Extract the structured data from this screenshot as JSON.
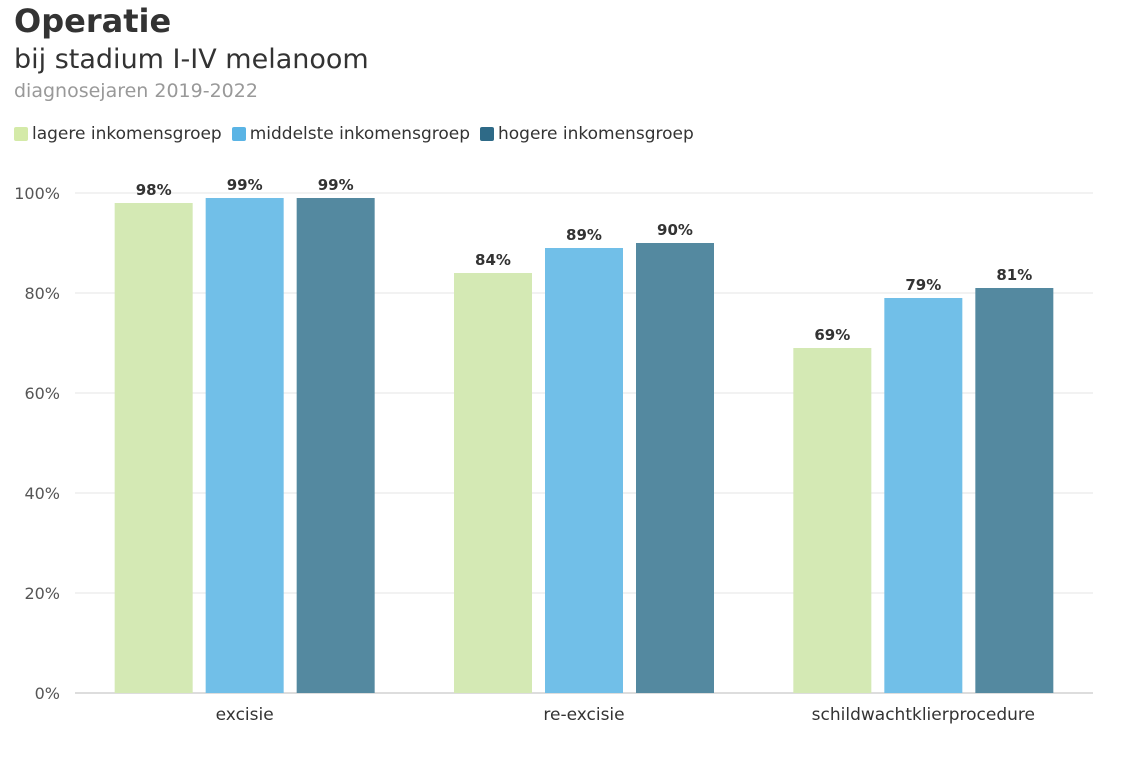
{
  "chart_data": {
    "type": "bar",
    "title": "Operatie",
    "subtitle": "bij stadium I-IV melanoom",
    "caption": "diagnosejaren 2019-2022",
    "categories": [
      "excisie",
      "re-excisie",
      "schildwachtklierprocedure"
    ],
    "series": [
      {
        "name": "lagere inkomensgroep",
        "values": [
          98,
          84,
          69
        ],
        "labels": [
          "98%",
          "84%",
          "69%"
        ],
        "color": "#d4e9b4",
        "legend_color": "#d4eaa8"
      },
      {
        "name": "middelste inkomensgroep",
        "values": [
          99,
          89,
          79
        ],
        "labels": [
          "99%",
          "89%",
          "79%"
        ],
        "color": "#71bfe8",
        "legend_color": "#5ab4e5"
      },
      {
        "name": "hogere inkomensgroep",
        "values": [
          99,
          90,
          81
        ],
        "labels": [
          "99%",
          "90%",
          "81%"
        ],
        "color": "#5489a0",
        "legend_color": "#2e6a87"
      }
    ],
    "yticks": [
      0,
      20,
      40,
      60,
      80,
      100
    ],
    "ytick_labels": [
      "0%",
      "20%",
      "40%",
      "60%",
      "80%",
      "100%"
    ],
    "ylim": [
      0,
      100
    ],
    "grid": true,
    "legend_position": "top-left"
  }
}
